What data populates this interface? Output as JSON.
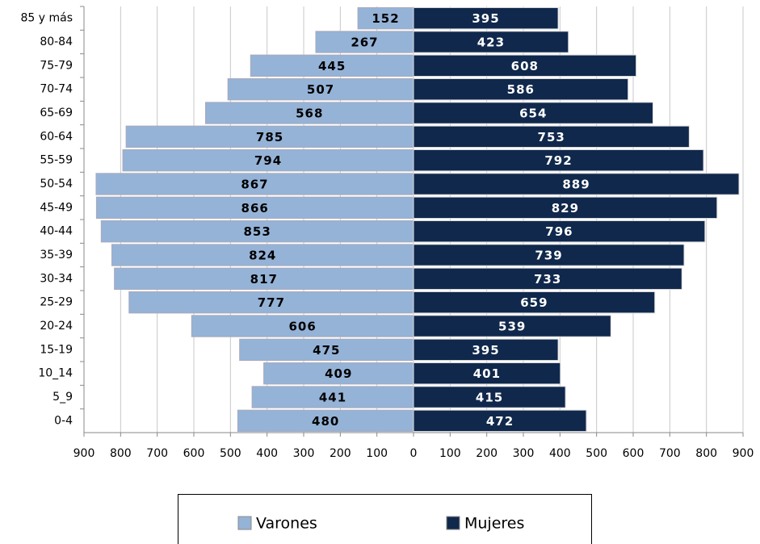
{
  "chart_data": {
    "type": "pyramid",
    "categories": [
      "85 y más",
      "80-84",
      "75-79",
      "70-74",
      "65-69",
      "60-64",
      "55-59",
      "50-54",
      "45-49",
      "40-44",
      "35-39",
      "30-34",
      "25-29",
      "20-24",
      "15-19",
      "10_14",
      "5_9",
      "0-4"
    ],
    "series": [
      {
        "name": "Varones",
        "color": "#95b3d7",
        "values": [
          152,
          267,
          445,
          507,
          568,
          785,
          794,
          867,
          866,
          853,
          824,
          817,
          777,
          606,
          475,
          409,
          441,
          480
        ]
      },
      {
        "name": "Mujeres",
        "color": "#10284c",
        "values": [
          395,
          423,
          608,
          586,
          654,
          753,
          792,
          889,
          829,
          796,
          739,
          733,
          659,
          539,
          395,
          401,
          415,
          472
        ]
      }
    ],
    "xlim": [
      -900,
      900
    ],
    "xticks": [
      {
        "value": -900,
        "label": "900"
      },
      {
        "value": -800,
        "label": "800"
      },
      {
        "value": -700,
        "label": "700"
      },
      {
        "value": -600,
        "label": "600"
      },
      {
        "value": -500,
        "label": "500"
      },
      {
        "value": -400,
        "label": "400"
      },
      {
        "value": -300,
        "label": "300"
      },
      {
        "value": -200,
        "label": "200"
      },
      {
        "value": -100,
        "label": "100"
      },
      0,
      100,
      200,
      300,
      400,
      500,
      600,
      700,
      800,
      900
    ],
    "grid": true,
    "legend": "bottom"
  }
}
